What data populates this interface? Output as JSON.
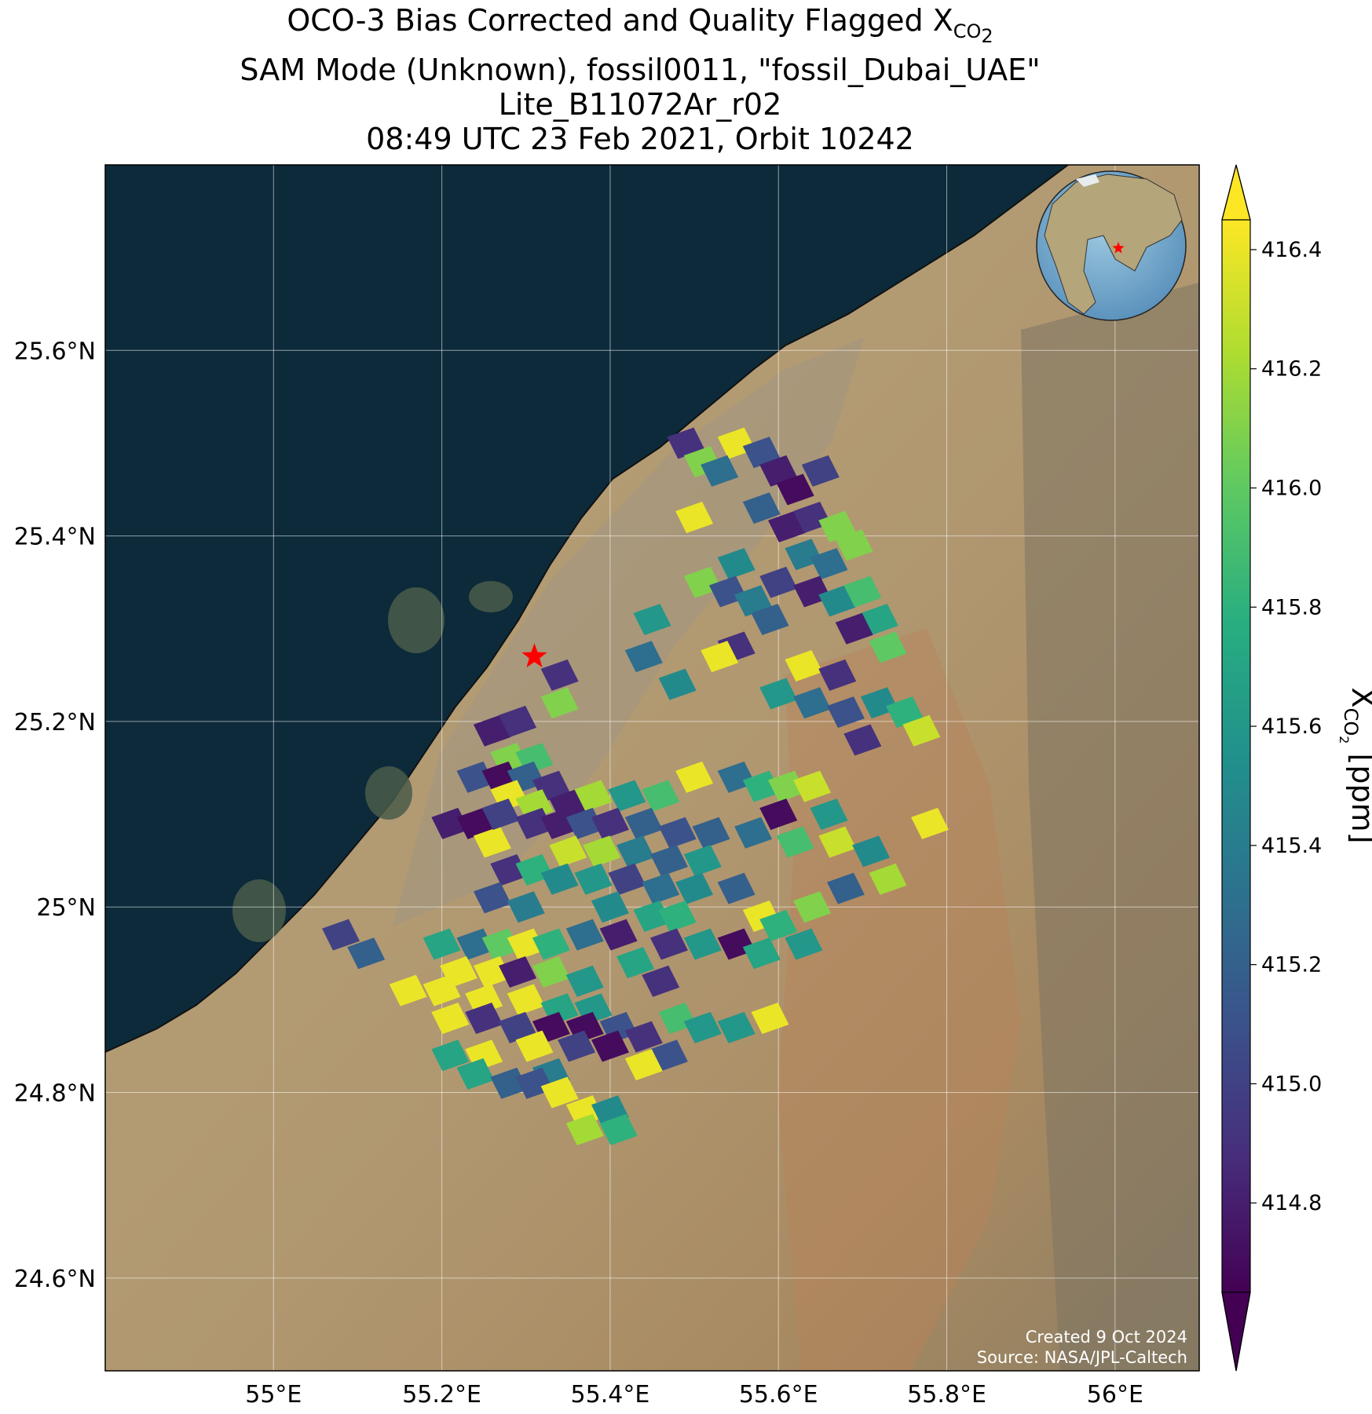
{
  "title": {
    "line1_main": "OCO-3 Bias Corrected and Quality Flagged X",
    "line1_sub": "CO",
    "line1_subsub": "2",
    "line2": "SAM Mode (Unknown), fossil0011, \"fossil_Dubai_UAE\"",
    "line3": "Lite_B11072Ar_r02",
    "line4": "08:49 UTC 23 Feb 2021, Orbit 10242"
  },
  "map": {
    "lon_range": [
      54.8,
      56.1
    ],
    "lat_range": [
      24.5,
      25.8
    ],
    "lon_ticks": [
      {
        "value": 55.0,
        "label": "55°E"
      },
      {
        "value": 55.2,
        "label": "55.2°E"
      },
      {
        "value": 55.4,
        "label": "55.4°E"
      },
      {
        "value": 55.6,
        "label": "55.6°E"
      },
      {
        "value": 55.8,
        "label": "55.8°E"
      },
      {
        "value": 56.0,
        "label": "56°E"
      }
    ],
    "lat_ticks": [
      {
        "value": 24.6,
        "label": "24.6°N"
      },
      {
        "value": 24.8,
        "label": "24.8°N"
      },
      {
        "value": 25.0,
        "label": "25°N"
      },
      {
        "value": 25.2,
        "label": "25.2°N"
      },
      {
        "value": 25.4,
        "label": "25.4°N"
      },
      {
        "value": 25.6,
        "label": "25.6°N"
      }
    ],
    "gridlines": true,
    "target_site": {
      "lon": 55.31,
      "lat": 25.27,
      "marker": "red-star"
    },
    "inset_globe": {
      "placement": "top-right",
      "marker": "red-star"
    },
    "colors": {
      "sea": "#0c2a3a",
      "land": "#b39c72",
      "target": "#ff0000"
    }
  },
  "colorbar": {
    "label_main": "X",
    "label_sub": "CO",
    "label_subsub": "2",
    "label_unit": " [ppm]",
    "min": 414.65,
    "max": 416.45,
    "extend": "both",
    "colormap": "viridis",
    "ticks": [
      {
        "value": 414.8,
        "label": "414.8"
      },
      {
        "value": 415.0,
        "label": "415.0"
      },
      {
        "value": 415.2,
        "label": "415.2"
      },
      {
        "value": 415.4,
        "label": "415.4"
      },
      {
        "value": 415.6,
        "label": "415.6"
      },
      {
        "value": 415.8,
        "label": "415.8"
      },
      {
        "value": 416.0,
        "label": "416.0"
      },
      {
        "value": 416.2,
        "label": "416.2"
      },
      {
        "value": 416.4,
        "label": "416.4"
      }
    ]
  },
  "chart_data": {
    "type": "heatmap",
    "soundings": [
      {
        "lon": 55.49,
        "lat": 25.5,
        "xco2": 414.9
      },
      {
        "lon": 55.51,
        "lat": 25.48,
        "xco2": 416.1
      },
      {
        "lon": 55.55,
        "lat": 25.5,
        "xco2": 416.4
      },
      {
        "lon": 55.53,
        "lat": 25.47,
        "xco2": 415.3
      },
      {
        "lon": 55.58,
        "lat": 25.49,
        "xco2": 415.1
      },
      {
        "lon": 55.6,
        "lat": 25.47,
        "xco2": 414.8
      },
      {
        "lon": 55.62,
        "lat": 25.45,
        "xco2": 414.7
      },
      {
        "lon": 55.65,
        "lat": 25.47,
        "xco2": 415.0
      },
      {
        "lon": 55.58,
        "lat": 25.43,
        "xco2": 415.2
      },
      {
        "lon": 55.61,
        "lat": 25.41,
        "xco2": 414.8
      },
      {
        "lon": 55.64,
        "lat": 25.42,
        "xco2": 414.9
      },
      {
        "lon": 55.67,
        "lat": 25.41,
        "xco2": 416.1
      },
      {
        "lon": 55.55,
        "lat": 25.37,
        "xco2": 415.5
      },
      {
        "lon": 55.5,
        "lat": 25.42,
        "xco2": 416.4
      },
      {
        "lon": 55.63,
        "lat": 25.38,
        "xco2": 415.4
      },
      {
        "lon": 55.66,
        "lat": 25.37,
        "xco2": 415.3
      },
      {
        "lon": 55.69,
        "lat": 25.39,
        "xco2": 416.1
      },
      {
        "lon": 55.6,
        "lat": 25.35,
        "xco2": 415.0
      },
      {
        "lon": 55.64,
        "lat": 25.34,
        "xco2": 414.8
      },
      {
        "lon": 55.67,
        "lat": 25.33,
        "xco2": 415.5
      },
      {
        "lon": 55.7,
        "lat": 25.34,
        "xco2": 415.9
      },
      {
        "lon": 55.72,
        "lat": 25.31,
        "xco2": 415.7
      },
      {
        "lon": 55.69,
        "lat": 25.3,
        "xco2": 414.8
      },
      {
        "lon": 55.73,
        "lat": 25.28,
        "xco2": 416.0
      },
      {
        "lon": 55.51,
        "lat": 25.35,
        "xco2": 416.1
      },
      {
        "lon": 55.54,
        "lat": 25.34,
        "xco2": 415.1
      },
      {
        "lon": 55.57,
        "lat": 25.33,
        "xco2": 415.4
      },
      {
        "lon": 55.59,
        "lat": 25.31,
        "xco2": 415.2
      },
      {
        "lon": 55.55,
        "lat": 25.28,
        "xco2": 414.9
      },
      {
        "lon": 55.45,
        "lat": 25.31,
        "xco2": 415.6
      },
      {
        "lon": 55.44,
        "lat": 25.27,
        "xco2": 415.3
      },
      {
        "lon": 55.53,
        "lat": 25.27,
        "xco2": 416.4
      },
      {
        "lon": 55.48,
        "lat": 25.24,
        "xco2": 415.5
      },
      {
        "lon": 55.63,
        "lat": 25.26,
        "xco2": 416.4
      },
      {
        "lon": 55.67,
        "lat": 25.25,
        "xco2": 414.9
      },
      {
        "lon": 55.6,
        "lat": 25.23,
        "xco2": 415.6
      },
      {
        "lon": 55.64,
        "lat": 25.22,
        "xco2": 415.3
      },
      {
        "lon": 55.68,
        "lat": 25.21,
        "xco2": 415.1
      },
      {
        "lon": 55.72,
        "lat": 25.22,
        "xco2": 415.5
      },
      {
        "lon": 55.75,
        "lat": 25.21,
        "xco2": 415.8
      },
      {
        "lon": 55.77,
        "lat": 25.19,
        "xco2": 416.3
      },
      {
        "lon": 55.7,
        "lat": 25.18,
        "xco2": 414.9
      },
      {
        "lon": 55.34,
        "lat": 25.25,
        "xco2": 414.9
      },
      {
        "lon": 55.34,
        "lat": 25.22,
        "xco2": 416.1
      },
      {
        "lon": 55.26,
        "lat": 25.19,
        "xco2": 414.8
      },
      {
        "lon": 55.29,
        "lat": 25.2,
        "xco2": 414.9
      },
      {
        "lon": 55.28,
        "lat": 25.16,
        "xco2": 416.1
      },
      {
        "lon": 55.31,
        "lat": 25.16,
        "xco2": 415.9
      },
      {
        "lon": 55.24,
        "lat": 25.14,
        "xco2": 415.1
      },
      {
        "lon": 55.27,
        "lat": 25.14,
        "xco2": 414.7
      },
      {
        "lon": 55.3,
        "lat": 25.14,
        "xco2": 415.2
      },
      {
        "lon": 55.33,
        "lat": 25.13,
        "xco2": 414.9
      },
      {
        "lon": 55.28,
        "lat": 25.12,
        "xco2": 416.4
      },
      {
        "lon": 55.31,
        "lat": 25.11,
        "xco2": 416.2
      },
      {
        "lon": 55.35,
        "lat": 25.11,
        "xco2": 414.8
      },
      {
        "lon": 55.38,
        "lat": 25.12,
        "xco2": 416.2
      },
      {
        "lon": 55.42,
        "lat": 25.12,
        "xco2": 415.6
      },
      {
        "lon": 55.46,
        "lat": 25.12,
        "xco2": 415.9
      },
      {
        "lon": 55.5,
        "lat": 25.14,
        "xco2": 416.4
      },
      {
        "lon": 55.55,
        "lat": 25.14,
        "xco2": 415.3
      },
      {
        "lon": 55.58,
        "lat": 25.13,
        "xco2": 415.8
      },
      {
        "lon": 55.61,
        "lat": 25.13,
        "xco2": 416.1
      },
      {
        "lon": 55.64,
        "lat": 25.13,
        "xco2": 416.3
      },
      {
        "lon": 55.66,
        "lat": 25.1,
        "xco2": 415.6
      },
      {
        "lon": 55.6,
        "lat": 25.1,
        "xco2": 414.7
      },
      {
        "lon": 55.57,
        "lat": 25.08,
        "xco2": 415.3
      },
      {
        "lon": 55.62,
        "lat": 25.07,
        "xco2": 415.9
      },
      {
        "lon": 55.67,
        "lat": 25.07,
        "xco2": 416.3
      },
      {
        "lon": 55.71,
        "lat": 25.06,
        "xco2": 415.5
      },
      {
        "lon": 55.73,
        "lat": 25.03,
        "xco2": 416.2
      },
      {
        "lon": 55.68,
        "lat": 25.02,
        "xco2": 415.2
      },
      {
        "lon": 55.78,
        "lat": 25.09,
        "xco2": 416.4
      },
      {
        "lon": 55.64,
        "lat": 25.0,
        "xco2": 416.1
      },
      {
        "lon": 55.21,
        "lat": 25.09,
        "xco2": 414.8
      },
      {
        "lon": 55.24,
        "lat": 25.09,
        "xco2": 414.7
      },
      {
        "lon": 55.26,
        "lat": 25.07,
        "xco2": 416.4
      },
      {
        "lon": 55.27,
        "lat": 25.1,
        "xco2": 415.0
      },
      {
        "lon": 55.31,
        "lat": 25.09,
        "xco2": 414.9
      },
      {
        "lon": 55.34,
        "lat": 25.09,
        "xco2": 414.8
      },
      {
        "lon": 55.37,
        "lat": 25.09,
        "xco2": 415.1
      },
      {
        "lon": 55.4,
        "lat": 25.09,
        "xco2": 414.9
      },
      {
        "lon": 55.44,
        "lat": 25.09,
        "xco2": 415.2
      },
      {
        "lon": 55.48,
        "lat": 25.08,
        "xco2": 415.1
      },
      {
        "lon": 55.52,
        "lat": 25.08,
        "xco2": 415.2
      },
      {
        "lon": 55.35,
        "lat": 25.06,
        "xco2": 416.3
      },
      {
        "lon": 55.39,
        "lat": 25.06,
        "xco2": 416.2
      },
      {
        "lon": 55.43,
        "lat": 25.06,
        "xco2": 415.4
      },
      {
        "lon": 55.47,
        "lat": 25.05,
        "xco2": 415.2
      },
      {
        "lon": 55.51,
        "lat": 25.05,
        "xco2": 415.6
      },
      {
        "lon": 55.28,
        "lat": 25.04,
        "xco2": 414.9
      },
      {
        "lon": 55.31,
        "lat": 25.04,
        "xco2": 415.8
      },
      {
        "lon": 55.34,
        "lat": 25.03,
        "xco2": 415.5
      },
      {
        "lon": 55.38,
        "lat": 25.03,
        "xco2": 415.6
      },
      {
        "lon": 55.42,
        "lat": 25.03,
        "xco2": 415.0
      },
      {
        "lon": 55.46,
        "lat": 25.02,
        "xco2": 415.3
      },
      {
        "lon": 55.5,
        "lat": 25.02,
        "xco2": 415.5
      },
      {
        "lon": 55.55,
        "lat": 25.02,
        "xco2": 415.2
      },
      {
        "lon": 55.26,
        "lat": 25.01,
        "xco2": 415.1
      },
      {
        "lon": 55.3,
        "lat": 25.0,
        "xco2": 415.4
      },
      {
        "lon": 55.4,
        "lat": 25.0,
        "xco2": 415.5
      },
      {
        "lon": 55.45,
        "lat": 24.99,
        "xco2": 415.7
      },
      {
        "lon": 55.48,
        "lat": 24.99,
        "xco2": 415.8
      },
      {
        "lon": 55.58,
        "lat": 24.99,
        "xco2": 416.4
      },
      {
        "lon": 55.6,
        "lat": 24.98,
        "xco2": 415.8
      },
      {
        "lon": 55.08,
        "lat": 24.97,
        "xco2": 415.0
      },
      {
        "lon": 55.11,
        "lat": 24.95,
        "xco2": 415.2
      },
      {
        "lon": 55.2,
        "lat": 24.96,
        "xco2": 415.7
      },
      {
        "lon": 55.24,
        "lat": 24.96,
        "xco2": 415.3
      },
      {
        "lon": 55.27,
        "lat": 24.96,
        "xco2": 416.0
      },
      {
        "lon": 55.3,
        "lat": 24.96,
        "xco2": 416.4
      },
      {
        "lon": 55.33,
        "lat": 24.96,
        "xco2": 415.8
      },
      {
        "lon": 55.37,
        "lat": 24.97,
        "xco2": 415.3
      },
      {
        "lon": 55.41,
        "lat": 24.97,
        "xco2": 414.8
      },
      {
        "lon": 55.47,
        "lat": 24.96,
        "xco2": 414.9
      },
      {
        "lon": 55.51,
        "lat": 24.96,
        "xco2": 415.6
      },
      {
        "lon": 55.55,
        "lat": 24.96,
        "xco2": 414.7
      },
      {
        "lon": 55.58,
        "lat": 24.95,
        "xco2": 415.7
      },
      {
        "lon": 55.63,
        "lat": 24.96,
        "xco2": 415.6
      },
      {
        "lon": 55.22,
        "lat": 24.93,
        "xco2": 416.4
      },
      {
        "lon": 55.26,
        "lat": 24.93,
        "xco2": 416.4
      },
      {
        "lon": 55.29,
        "lat": 24.93,
        "xco2": 414.8
      },
      {
        "lon": 55.33,
        "lat": 24.93,
        "xco2": 416.1
      },
      {
        "lon": 55.37,
        "lat": 24.92,
        "xco2": 415.6
      },
      {
        "lon": 55.43,
        "lat": 24.94,
        "xco2": 415.7
      },
      {
        "lon": 55.46,
        "lat": 24.92,
        "xco2": 414.9
      },
      {
        "lon": 55.16,
        "lat": 24.91,
        "xco2": 416.4
      },
      {
        "lon": 55.2,
        "lat": 24.91,
        "xco2": 416.4
      },
      {
        "lon": 55.25,
        "lat": 24.9,
        "xco2": 416.4
      },
      {
        "lon": 55.3,
        "lat": 24.9,
        "xco2": 416.4
      },
      {
        "lon": 55.34,
        "lat": 24.89,
        "xco2": 415.7
      },
      {
        "lon": 55.38,
        "lat": 24.89,
        "xco2": 415.6
      },
      {
        "lon": 55.21,
        "lat": 24.88,
        "xco2": 416.4
      },
      {
        "lon": 55.25,
        "lat": 24.88,
        "xco2": 414.9
      },
      {
        "lon": 55.29,
        "lat": 24.87,
        "xco2": 415.0
      },
      {
        "lon": 55.33,
        "lat": 24.87,
        "xco2": 414.7
      },
      {
        "lon": 55.37,
        "lat": 24.87,
        "xco2": 414.7
      },
      {
        "lon": 55.41,
        "lat": 24.87,
        "xco2": 415.1
      },
      {
        "lon": 55.48,
        "lat": 24.88,
        "xco2": 415.9
      },
      {
        "lon": 55.51,
        "lat": 24.87,
        "xco2": 415.6
      },
      {
        "lon": 55.55,
        "lat": 24.87,
        "xco2": 415.6
      },
      {
        "lon": 55.59,
        "lat": 24.88,
        "xco2": 416.4
      },
      {
        "lon": 55.44,
        "lat": 24.86,
        "xco2": 414.9
      },
      {
        "lon": 55.47,
        "lat": 24.84,
        "xco2": 415.1
      },
      {
        "lon": 55.31,
        "lat": 24.85,
        "xco2": 416.4
      },
      {
        "lon": 55.36,
        "lat": 24.85,
        "xco2": 415.0
      },
      {
        "lon": 55.4,
        "lat": 24.85,
        "xco2": 414.7
      },
      {
        "lon": 55.44,
        "lat": 24.83,
        "xco2": 416.4
      },
      {
        "lon": 55.25,
        "lat": 24.84,
        "xco2": 416.4
      },
      {
        "lon": 55.21,
        "lat": 24.84,
        "xco2": 415.7
      },
      {
        "lon": 55.24,
        "lat": 24.82,
        "xco2": 415.7
      },
      {
        "lon": 55.33,
        "lat": 24.82,
        "xco2": 415.4
      },
      {
        "lon": 55.28,
        "lat": 24.81,
        "xco2": 415.2
      },
      {
        "lon": 55.31,
        "lat": 24.81,
        "xco2": 415.1
      },
      {
        "lon": 55.34,
        "lat": 24.8,
        "xco2": 416.4
      },
      {
        "lon": 55.37,
        "lat": 24.78,
        "xco2": 416.4
      },
      {
        "lon": 55.4,
        "lat": 24.78,
        "xco2": 415.5
      },
      {
        "lon": 55.37,
        "lat": 24.76,
        "xco2": 416.2
      },
      {
        "lon": 55.41,
        "lat": 24.76,
        "xco2": 415.8
      }
    ]
  },
  "credits": {
    "created": "Created 9 Oct 2024",
    "source": "Source: NASA/JPL-Caltech"
  }
}
